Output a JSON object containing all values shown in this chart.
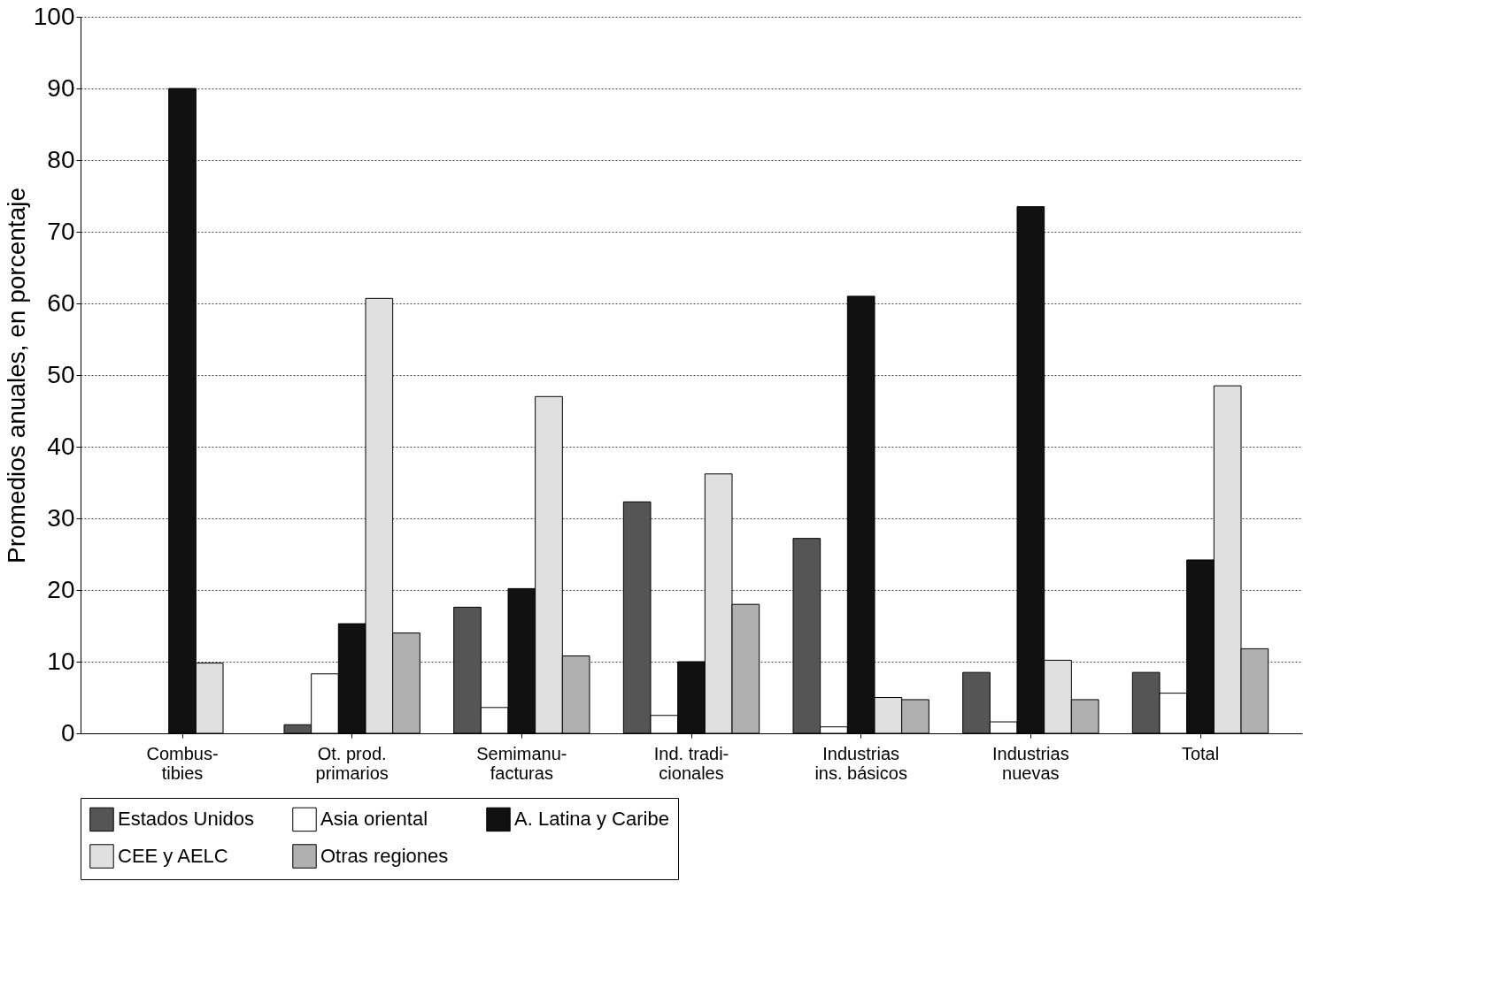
{
  "chart_data": {
    "type": "bar",
    "ylabel": "Promedios anuales, en porcentaje",
    "categories": [
      "Combus-\ntibies",
      "Ot. prod.\nprimarios",
      "Semimanu-\nfacturas",
      "Ind. tradi-\ncionales",
      "Industrias\nins. básicos",
      "Industrias\nnuevas",
      "Total"
    ],
    "series": [
      {
        "name": "Estados Unidos",
        "color": "#555555",
        "values": [
          null,
          1.2,
          17.6,
          32.3,
          27.2,
          8.5,
          8.5
        ]
      },
      {
        "name": "Asia oriental",
        "color": "#ffffff",
        "values": [
          null,
          8.3,
          3.6,
          2.5,
          0.9,
          1.6,
          5.6
        ]
      },
      {
        "name": "A. Latina y Caribe",
        "color": "#111111",
        "values": [
          90,
          15.3,
          20.2,
          10,
          61,
          73.5,
          24.2
        ]
      },
      {
        "name": "CEE y AELC",
        "color": "#e0e0e0",
        "values": [
          9.8,
          60.7,
          47,
          36.2,
          5,
          10.2,
          48.5
        ]
      },
      {
        "name": "Otras regiones",
        "color": "#b0b0b0",
        "values": [
          null,
          14,
          10.8,
          18,
          4.7,
          4.7,
          11.8
        ]
      }
    ],
    "ylim": [
      0,
      100
    ],
    "yticks": [
      0,
      10,
      20,
      30,
      40,
      50,
      60,
      70,
      80,
      90,
      100
    ],
    "grid": "y",
    "legend": "bottom"
  }
}
